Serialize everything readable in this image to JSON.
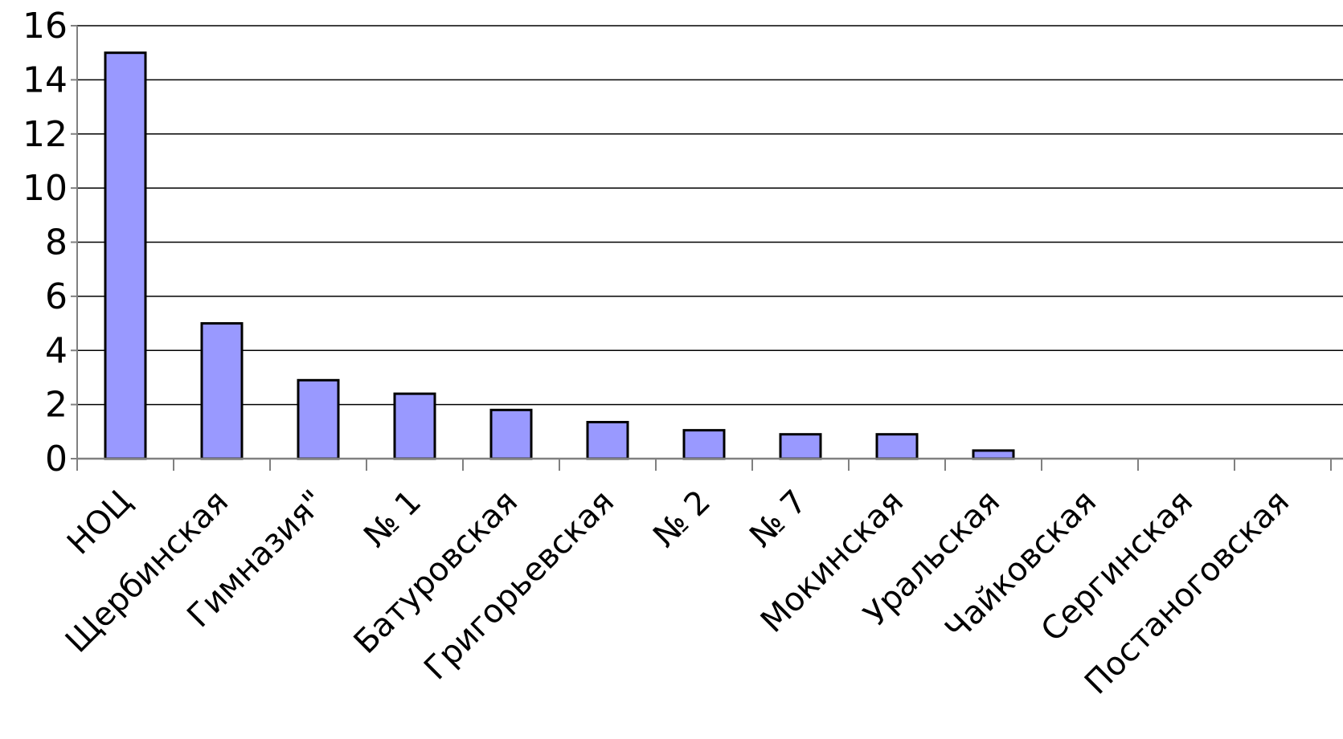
{
  "chart_data": {
    "type": "bar",
    "title": "",
    "xlabel": "",
    "ylabel": "",
    "categories": [
      "НОЦ",
      "Щербинская",
      "Гимназия\"",
      "№ 1",
      "Батуровская",
      "Григорьевская",
      "№ 2",
      "№ 7",
      "Мокинская",
      "Уральская",
      "Чайковская",
      "Сергинская",
      "Постаноговская"
    ],
    "values": [
      15,
      5,
      2.9,
      2.4,
      1.8,
      1.35,
      1.05,
      0.9,
      0.9,
      0.3,
      0,
      0,
      0
    ],
    "ylim": [
      0,
      16
    ],
    "yticks": [
      "0",
      "2",
      "4",
      "6",
      "8",
      "10",
      "12",
      "14",
      "16"
    ],
    "grid": true,
    "legend": "none",
    "colors": {
      "bar_fill": "#9999ff",
      "bar_stroke": "#000000",
      "grid": "#000000",
      "axis": "#808080",
      "background": "#ffffff"
    }
  }
}
